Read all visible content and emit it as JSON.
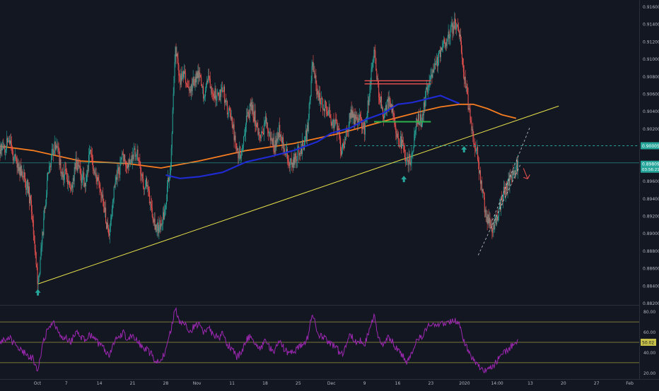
{
  "chart_data": {
    "type": "candlestick",
    "symbol": "",
    "colors": {
      "background": "#131722",
      "up": "#26a69a",
      "down": "#ef5350",
      "axis_text": "#b2b5be",
      "ma_long": "#f57c20",
      "ma_short": "#1f2bd1",
      "trendline": "#e6e04a",
      "rsi": "#9c27b0",
      "rsi_levels": "#c8c24a",
      "last_price_tag": "#26a69a",
      "rsi_tag": "#c8c24a",
      "resistance": "#ef5350",
      "support": "#26a69a",
      "arrow_up": "#26a69a",
      "arrow_down": "#ef5350"
    },
    "price_axis": {
      "ylim": [
        0.8818,
        0.9166
      ],
      "ticks": [
        "0.91600",
        "0.91400",
        "0.91200",
        "0.91000",
        "0.90800",
        "0.90600",
        "0.90400",
        "0.90200",
        "0.90000",
        "0.89800",
        "0.89600",
        "0.89400",
        "0.89200",
        "0.89000",
        "0.88800",
        "0.88600",
        "0.88400",
        "0.88200"
      ],
      "tick_values": [
        0.916,
        0.914,
        0.912,
        0.91,
        0.908,
        0.906,
        0.904,
        0.902,
        0.9,
        0.898,
        0.896,
        0.894,
        0.892,
        0.89,
        0.888,
        0.886,
        0.884,
        0.882
      ],
      "last_price_label": "0.89809",
      "last_price_value": 0.89809,
      "countdown_label": "03:56:21",
      "dashed_level_label": "0.90005",
      "dashed_level_value": 0.90005
    },
    "rsi_axis": {
      "ylim": [
        14,
        86
      ],
      "ticks": [
        "80.00",
        "60.00",
        "40.00",
        "20.00"
      ],
      "tick_values": [
        80,
        60,
        40,
        20
      ],
      "upper_level": 70,
      "mid_level": 50,
      "lower_level": 30,
      "last_value_label": "50.02",
      "last_value": 50.02
    },
    "x_axis": {
      "labels": [
        "Oct",
        "7",
        "14",
        "21",
        "28",
        "Nov",
        "11",
        "18",
        "25",
        "Dec",
        "9",
        "16",
        "23",
        "2020",
        "14:00",
        "13",
        "20",
        "27",
        "Feb"
      ],
      "label_positions": [
        0.9,
        7,
        14,
        21,
        28,
        34.6,
        42,
        49,
        56,
        63,
        70,
        77,
        84,
        91.1,
        98,
        105,
        112,
        119,
        126
      ],
      "xlim": [
        -7,
        128
      ]
    },
    "candles": {
      "count": 760,
      "day_span": [
        -7,
        102.4
      ],
      "keypoints": [
        [
          -7,
          0.8996
        ],
        [
          -5,
          0.9005
        ],
        [
          -4,
          0.8985
        ],
        [
          -2,
          0.8965
        ],
        [
          -1,
          0.895
        ],
        [
          0,
          0.891
        ],
        [
          0.8,
          0.8855
        ],
        [
          1,
          0.884
        ],
        [
          2,
          0.89
        ],
        [
          3,
          0.896
        ],
        [
          4,
          0.8995
        ],
        [
          5,
          0.9
        ],
        [
          6,
          0.897
        ],
        [
          7,
          0.8965
        ],
        [
          8,
          0.8945
        ],
        [
          9,
          0.8985
        ],
        [
          10,
          0.8965
        ],
        [
          11,
          0.896
        ],
        [
          12,
          0.899
        ],
        [
          13,
          0.8975
        ],
        [
          14,
          0.895
        ],
        [
          15,
          0.893
        ],
        [
          16,
          0.8895
        ],
        [
          17,
          0.895
        ],
        [
          18,
          0.897
        ],
        [
          19,
          0.899
        ],
        [
          20,
          0.898
        ],
        [
          21,
          0.899
        ],
        [
          22,
          0.899
        ],
        [
          23,
          0.896
        ],
        [
          24,
          0.8955
        ],
        [
          25,
          0.893
        ],
        [
          26,
          0.8905
        ],
        [
          27,
          0.891
        ],
        [
          28,
          0.893
        ],
        [
          28.5,
          0.896
        ],
        [
          29,
          0.8975
        ],
        [
          30,
          0.911
        ],
        [
          31,
          0.9075
        ],
        [
          32,
          0.908
        ],
        [
          33,
          0.906
        ],
        [
          34,
          0.9075
        ],
        [
          35,
          0.908
        ],
        [
          36,
          0.906
        ],
        [
          37,
          0.908
        ],
        [
          38,
          0.9065
        ],
        [
          39,
          0.9055
        ],
        [
          40,
          0.907
        ],
        [
          41,
          0.904
        ],
        [
          42,
          0.903
        ],
        [
          43,
          0.899
        ],
        [
          44,
          0.8995
        ],
        [
          45,
          0.903
        ],
        [
          46,
          0.9045
        ],
        [
          47,
          0.903
        ],
        [
          48,
          0.9005
        ],
        [
          49,
          0.903
        ],
        [
          50,
          0.901
        ],
        [
          51,
          0.9
        ],
        [
          52,
          0.902
        ],
        [
          53,
          0.9
        ],
        [
          54,
          0.898
        ],
        [
          55,
          0.898
        ],
        [
          56,
          0.8995
        ],
        [
          57,
          0.9
        ],
        [
          58,
          0.902
        ],
        [
          59,
          0.9095
        ],
        [
          60,
          0.906
        ],
        [
          61,
          0.905
        ],
        [
          62,
          0.9045
        ],
        [
          63,
          0.903
        ],
        [
          64,
          0.9025
        ],
        [
          65,
          0.8995
        ],
        [
          66,
          0.901
        ],
        [
          67,
          0.904
        ],
        [
          68,
          0.903
        ],
        [
          69,
          0.903
        ],
        [
          70,
          0.902
        ],
        [
          71,
          0.906
        ],
        [
          72,
          0.911
        ],
        [
          73,
          0.906
        ],
        [
          74,
          0.9035
        ],
        [
          75,
          0.905
        ],
        [
          76,
          0.904
        ],
        [
          77,
          0.901
        ],
        [
          78,
          0.9
        ],
        [
          79,
          0.898
        ],
        [
          80,
          0.899
        ],
        [
          81,
          0.903
        ],
        [
          82,
          0.903
        ],
        [
          83,
          0.906
        ],
        [
          84,
          0.9085
        ],
        [
          85,
          0.909
        ],
        [
          86,
          0.911
        ],
        [
          87,
          0.912
        ],
        [
          88,
          0.913
        ],
        [
          89,
          0.914
        ],
        [
          90,
          0.913
        ],
        [
          91,
          0.908
        ],
        [
          92,
          0.9045
        ],
        [
          93,
          0.901
        ],
        [
          94,
          0.8985
        ],
        [
          95,
          0.894
        ],
        [
          96,
          0.8915
        ],
        [
          97,
          0.8905
        ],
        [
          98,
          0.892
        ],
        [
          99,
          0.894
        ],
        [
          100,
          0.8955
        ],
        [
          101,
          0.8965
        ],
        [
          102,
          0.8975
        ],
        [
          102.4,
          0.8981
        ]
      ]
    },
    "ma_long": [
      [
        -7,
        0.9
      ],
      [
        0,
        0.8995
      ],
      [
        10,
        0.8983
      ],
      [
        20,
        0.898
      ],
      [
        27,
        0.8975
      ],
      [
        35,
        0.8983
      ],
      [
        45,
        0.8995
      ],
      [
        55,
        0.9003
      ],
      [
        65,
        0.9015
      ],
      [
        75,
        0.903
      ],
      [
        82,
        0.904
      ],
      [
        86,
        0.9045
      ],
      [
        90,
        0.9048
      ],
      [
        93,
        0.9048
      ],
      [
        96,
        0.9043
      ],
      [
        99,
        0.9036
      ],
      [
        102,
        0.9032
      ]
    ],
    "ma_short": [
      [
        28,
        0.8967
      ],
      [
        31,
        0.8963
      ],
      [
        35,
        0.8965
      ],
      [
        40,
        0.897
      ],
      [
        45,
        0.8982
      ],
      [
        50,
        0.8988
      ],
      [
        55,
        0.8995
      ],
      [
        60,
        0.9005
      ],
      [
        63,
        0.9015
      ],
      [
        67,
        0.9021
      ],
      [
        70,
        0.903
      ],
      [
        74,
        0.9038
      ],
      [
        77,
        0.9048
      ],
      [
        80,
        0.905
      ],
      [
        83,
        0.9054
      ],
      [
        86,
        0.9058
      ],
      [
        90,
        0.9049
      ]
    ],
    "trendline": [
      [
        1,
        0.8842
      ],
      [
        111,
        0.9046
      ]
    ],
    "drawings": {
      "resistance": [
        [
          70,
          0.9075
        ],
        [
          84,
          0.9075
        ]
      ],
      "support": [
        [
          72,
          0.9028
        ],
        [
          84,
          0.9028
        ]
      ],
      "dashed_level": [
        [
          68,
          0.90005
        ],
        [
          128,
          0.90005
        ]
      ],
      "horizontal_level": [
        [
          -7,
          0.89809
        ],
        [
          128,
          0.89809
        ]
      ],
      "channel_lower": [
        [
          94,
          0.8875
        ],
        [
          103,
          0.898
        ]
      ],
      "channel_upper": [
        [
          97,
          0.8915
        ],
        [
          105,
          0.9023
        ]
      ],
      "arrow_down": [
        104,
        0.8965
      ],
      "arrows_up": [
        [
          1,
          0.8832
        ],
        [
          78.3,
          0.8962
        ],
        [
          91,
          0.8996
        ]
      ]
    },
    "rsi": {
      "keypoints": [
        [
          -7,
          52
        ],
        [
          -5,
          55
        ],
        [
          -4,
          48
        ],
        [
          -2,
          40
        ],
        [
          0,
          34
        ],
        [
          0.8,
          24
        ],
        [
          1,
          22
        ],
        [
          2,
          48
        ],
        [
          3,
          62
        ],
        [
          4,
          70
        ],
        [
          5,
          65
        ],
        [
          6,
          56
        ],
        [
          7,
          54
        ],
        [
          8,
          50
        ],
        [
          9,
          60
        ],
        [
          10,
          55
        ],
        [
          11,
          52
        ],
        [
          12,
          58
        ],
        [
          13,
          52
        ],
        [
          14,
          48
        ],
        [
          15,
          44
        ],
        [
          16,
          36
        ],
        [
          17,
          50
        ],
        [
          18,
          55
        ],
        [
          19,
          60
        ],
        [
          20,
          52
        ],
        [
          21,
          58
        ],
        [
          22,
          52
        ],
        [
          23,
          45
        ],
        [
          24,
          43
        ],
        [
          25,
          38
        ],
        [
          26,
          30
        ],
        [
          27,
          32
        ],
        [
          28,
          42
        ],
        [
          28.5,
          52
        ],
        [
          29,
          60
        ],
        [
          30,
          83
        ],
        [
          31,
          68
        ],
        [
          32,
          70
        ],
        [
          33,
          60
        ],
        [
          34,
          66
        ],
        [
          35,
          68
        ],
        [
          36,
          58
        ],
        [
          37,
          64
        ],
        [
          38,
          58
        ],
        [
          39,
          54
        ],
        [
          40,
          58
        ],
        [
          41,
          48
        ],
        [
          42,
          44
        ],
        [
          43,
          36
        ],
        [
          44,
          40
        ],
        [
          45,
          52
        ],
        [
          46,
          56
        ],
        [
          47,
          48
        ],
        [
          48,
          42
        ],
        [
          49,
          52
        ],
        [
          50,
          44
        ],
        [
          51,
          42
        ],
        [
          52,
          50
        ],
        [
          53,
          44
        ],
        [
          54,
          38
        ],
        [
          55,
          40
        ],
        [
          56,
          46
        ],
        [
          57,
          48
        ],
        [
          58,
          54
        ],
        [
          59,
          80
        ],
        [
          60,
          58
        ],
        [
          61,
          56
        ],
        [
          62,
          52
        ],
        [
          63,
          48
        ],
        [
          64,
          46
        ],
        [
          65,
          36
        ],
        [
          66,
          46
        ],
        [
          67,
          58
        ],
        [
          68,
          50
        ],
        [
          69,
          52
        ],
        [
          70,
          48
        ],
        [
          71,
          62
        ],
        [
          72,
          77
        ],
        [
          73,
          54
        ],
        [
          74,
          48
        ],
        [
          75,
          56
        ],
        [
          76,
          50
        ],
        [
          77,
          42
        ],
        [
          78,
          38
        ],
        [
          79,
          30
        ],
        [
          80,
          38
        ],
        [
          81,
          52
        ],
        [
          82,
          55
        ],
        [
          83,
          63
        ],
        [
          84,
          68
        ],
        [
          85,
          66
        ],
        [
          86,
          70
        ],
        [
          87,
          68
        ],
        [
          88,
          70
        ],
        [
          89,
          72
        ],
        [
          90,
          68
        ],
        [
          91,
          52
        ],
        [
          92,
          40
        ],
        [
          93,
          32
        ],
        [
          94,
          26
        ],
        [
          95,
          22
        ],
        [
          96,
          24
        ],
        [
          97,
          26
        ],
        [
          98,
          32
        ],
        [
          99,
          38
        ],
        [
          100,
          42
        ],
        [
          101,
          46
        ],
        [
          102,
          48
        ],
        [
          102.4,
          50
        ]
      ]
    }
  }
}
